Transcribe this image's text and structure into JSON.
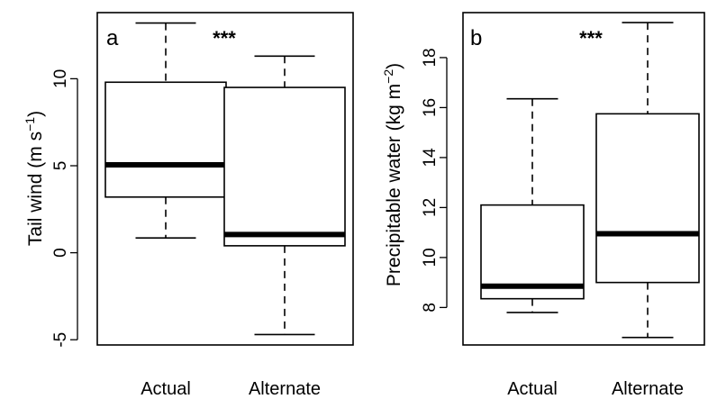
{
  "chart_data": [
    {
      "type": "box",
      "panel_label": "a",
      "significance": "***",
      "ylabel_main": "Tail wind (m s",
      "ylabel_sup": "−1",
      "ylabel_close": ")",
      "ylim": [
        -5.3,
        13.8
      ],
      "yticks": [
        -5,
        0,
        5,
        10
      ],
      "ytick_labels": [
        "-5",
        "0",
        "5",
        "10"
      ],
      "categories": [
        "Actual",
        "Alternate"
      ],
      "boxes": [
        {
          "name": "Actual",
          "min": 0.85,
          "q1": 3.2,
          "median": 5.05,
          "q3": 9.8,
          "max": 13.2
        },
        {
          "name": "Alternate",
          "min": -4.7,
          "q1": 0.4,
          "median": 1.05,
          "q3": 9.5,
          "max": 11.3
        }
      ]
    },
    {
      "type": "box",
      "panel_label": "b",
      "significance": "***",
      "ylabel_main": "Precipitable water (kg m",
      "ylabel_sup": "−2",
      "ylabel_close": ")",
      "ylim": [
        6.5,
        19.8
      ],
      "yticks": [
        8,
        10,
        12,
        14,
        16,
        18
      ],
      "ytick_labels": [
        "8",
        "10",
        "12",
        "14",
        "16",
        "18"
      ],
      "categories": [
        "Actual",
        "Alternate"
      ],
      "boxes": [
        {
          "name": "Actual",
          "min": 7.8,
          "q1": 8.35,
          "median": 8.85,
          "q3": 12.1,
          "max": 16.35
        },
        {
          "name": "Alternate",
          "min": 6.8,
          "q1": 9.0,
          "median": 10.95,
          "q3": 15.75,
          "max": 19.4
        }
      ]
    }
  ]
}
